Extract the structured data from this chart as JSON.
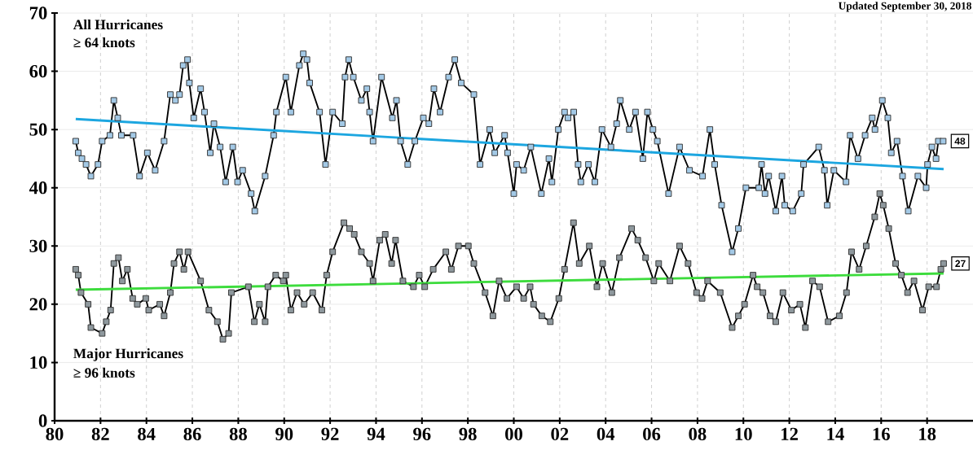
{
  "chart_data": {
    "type": "line",
    "title": "Updated September 30, 2018",
    "annotations": [
      "All Hurricanes",
      "≥ 64 knots",
      "Major Hurricanes",
      "≥ 96 knots",
      {
        "text": "48",
        "x": 2018.7,
        "y": 48
      },
      {
        "text": "27",
        "x": 2018.72,
        "y": 27
      }
    ],
    "xlim": [
      1980,
      2020
    ],
    "xticks": [
      {
        "value": 1980,
        "label": "80"
      },
      {
        "value": 1982,
        "label": "82"
      },
      {
        "value": 1984,
        "label": "84"
      },
      {
        "value": 1986,
        "label": "86"
      },
      {
        "value": 1988,
        "label": "88"
      },
      {
        "value": 1990,
        "label": "90"
      },
      {
        "value": 1992,
        "label": "92"
      },
      {
        "value": 1994,
        "label": "94"
      },
      {
        "value": 1996,
        "label": "96"
      },
      {
        "value": 1998,
        "label": "98"
      },
      {
        "value": 2000,
        "label": "00"
      },
      {
        "value": 2002,
        "label": "02"
      },
      {
        "value": 2004,
        "label": "04"
      },
      {
        "value": 2006,
        "label": "06"
      },
      {
        "value": 2008,
        "label": "08"
      },
      {
        "value": 2010,
        "label": "10"
      },
      {
        "value": 2012,
        "label": "12"
      },
      {
        "value": 2014,
        "label": "14"
      },
      {
        "value": 2016,
        "label": "16"
      },
      {
        "value": 2018,
        "label": "18"
      }
    ],
    "ylim": [
      0,
      70
    ],
    "yticks": [
      0,
      10,
      20,
      30,
      40,
      50,
      60,
      70
    ],
    "grid": true,
    "marker": "square",
    "series": [
      {
        "color": "#a3c9e6",
        "x": [
          1980.92,
          1981.03,
          1981.19,
          1981.37,
          1981.58,
          1981.89,
          1982.07,
          1982.41,
          1982.58,
          1982.75,
          1982.91,
          1983.42,
          1983.7,
          1984.04,
          1984.38,
          1984.77,
          1985.04,
          1985.26,
          1985.44,
          1985.6,
          1985.79,
          1985.87,
          1986.06,
          1986.36,
          1986.53,
          1986.78,
          1986.94,
          1987.21,
          1987.45,
          1987.76,
          1987.97,
          1988.19,
          1988.56,
          1988.72,
          1989.17,
          1989.54,
          1989.66,
          1990.07,
          1990.29,
          1990.66,
          1990.83,
          1990.99,
          1991.11,
          1991.54,
          1991.8,
          1992.11,
          1992.53,
          1992.65,
          1992.81,
          1993.01,
          1993.36,
          1993.6,
          1993.72,
          1993.87,
          1994.24,
          1994.71,
          1994.89,
          1995.07,
          1995.38,
          1995.69,
          1996.06,
          1996.3,
          1996.52,
          1996.79,
          1997.16,
          1997.43,
          1997.71,
          1998.26,
          1998.53,
          1998.95,
          1999.17,
          1999.6,
          1999.73,
          2000.0,
          2000.12,
          2000.43,
          2000.74,
          2001.2,
          2001.53,
          2001.66,
          2001.94,
          2002.21,
          2002.36,
          2002.61,
          2002.8,
          2002.92,
          2003.25,
          2003.53,
          2003.84,
          2004.23,
          2004.48,
          2004.64,
          2005.03,
          2005.3,
          2005.62,
          2005.82,
          2006.06,
          2006.25,
          2006.74,
          2007.22,
          2007.65,
          2008.22,
          2008.54,
          2008.75,
          2009.05,
          2009.51,
          2009.78,
          2010.11,
          2010.67,
          2010.79,
          2010.94,
          2011.1,
          2011.41,
          2011.68,
          2011.8,
          2012.15,
          2012.52,
          2012.62,
          2013.28,
          2013.53,
          2013.65,
          2013.94,
          2014.47,
          2014.65,
          2014.99,
          2015.3,
          2015.61,
          2015.73,
          2016.05,
          2016.29,
          2016.44,
          2016.69,
          2016.93,
          2017.18,
          2017.6,
          2017.96,
          2018.02,
          2018.21,
          2018.39,
          2018.49,
          2018.7
        ],
        "values": [
          48,
          46,
          45,
          44,
          42,
          44,
          48,
          49,
          55,
          52,
          49,
          49,
          42,
          46,
          43,
          48,
          56,
          55,
          56,
          61,
          62,
          58,
          52,
          57,
          53,
          46,
          51,
          47,
          41,
          47,
          41,
          43,
          39,
          36,
          42,
          49,
          53,
          59,
          53,
          61,
          63,
          62,
          58,
          53,
          44,
          53,
          51,
          59,
          62,
          59,
          55,
          57,
          53,
          48,
          59,
          52,
          55,
          48,
          44,
          48,
          52,
          51,
          57,
          53,
          59,
          62,
          58,
          56,
          44,
          50,
          46,
          49,
          46,
          39,
          44,
          43,
          47,
          39,
          45,
          41,
          50,
          53,
          52,
          53,
          44,
          41,
          44,
          41,
          50,
          47,
          51,
          55,
          50,
          53,
          45,
          53,
          50,
          48,
          39,
          47,
          43,
          42,
          50,
          44,
          37,
          29,
          33,
          40,
          40,
          44,
          39,
          42,
          36,
          42,
          37,
          36,
          39,
          44,
          47,
          43,
          37,
          43,
          41,
          49,
          45,
          49,
          52,
          50,
          55,
          52,
          46,
          48,
          42,
          36,
          42,
          40,
          44,
          47,
          45,
          48,
          48
        ]
      },
      {
        "color": "#8e989d",
        "x": [
          1980.92,
          1981.03,
          1981.15,
          1981.46,
          1981.58,
          1982.07,
          1982.25,
          1982.44,
          1982.58,
          1982.78,
          1982.95,
          1983.17,
          1983.4,
          1983.6,
          1983.97,
          1984.1,
          1984.58,
          1984.77,
          1985.04,
          1985.2,
          1985.44,
          1985.63,
          1985.81,
          1986.36,
          1986.72,
          1987.09,
          1987.33,
          1987.58,
          1987.7,
          1988.44,
          1988.7,
          1988.92,
          1989.17,
          1989.29,
          1989.63,
          1989.96,
          1990.07,
          1990.29,
          1990.56,
          1990.87,
          1991.24,
          1991.64,
          1991.85,
          1992.11,
          1992.6,
          1992.85,
          1993.05,
          1993.36,
          1993.72,
          1993.87,
          1994.16,
          1994.4,
          1994.68,
          1994.85,
          1995.17,
          1995.63,
          1995.88,
          1996.12,
          1996.49,
          1997.04,
          1997.28,
          1997.59,
          1998.02,
          1998.26,
          1998.75,
          1999.09,
          1999.36,
          1999.7,
          2000.12,
          2000.43,
          2000.71,
          2000.86,
          2001.22,
          2001.59,
          2001.96,
          2002.21,
          2002.6,
          2002.85,
          2003.29,
          2003.62,
          2003.87,
          2004.27,
          2004.6,
          2005.13,
          2005.4,
          2005.74,
          2006.1,
          2006.31,
          2006.8,
          2007.22,
          2007.59,
          2007.96,
          2008.2,
          2008.44,
          2008.99,
          2009.51,
          2009.78,
          2010.05,
          2010.42,
          2010.6,
          2010.85,
          2011.16,
          2011.41,
          2011.72,
          2012.09,
          2012.46,
          2012.7,
          2013.01,
          2013.32,
          2013.69,
          2014.18,
          2014.49,
          2014.71,
          2015.04,
          2015.35,
          2015.72,
          2015.94,
          2016.09,
          2016.33,
          2016.63,
          2016.88,
          2017.15,
          2017.43,
          2017.8,
          2018.07,
          2018.41,
          2018.6,
          2018.72
        ],
        "values": [
          26,
          25,
          22,
          20,
          16,
          15,
          17,
          19,
          27,
          28,
          24,
          26,
          21,
          20,
          21,
          19,
          20,
          18,
          22,
          27,
          29,
          26,
          29,
          24,
          19,
          17,
          14,
          15,
          22,
          23,
          17,
          20,
          17,
          23,
          25,
          24,
          25,
          19,
          22,
          20,
          22,
          19,
          25,
          29,
          34,
          33,
          32,
          29,
          27,
          24,
          31,
          32,
          27,
          31,
          24,
          23,
          25,
          23,
          26,
          29,
          26,
          30,
          30,
          27,
          22,
          18,
          24,
          21,
          23,
          21,
          23,
          20,
          18,
          17,
          21,
          26,
          34,
          27,
          30,
          23,
          27,
          22,
          28,
          33,
          31,
          28,
          24,
          27,
          24,
          30,
          27,
          22,
          21,
          24,
          22,
          16,
          18,
          20,
          25,
          23,
          22,
          18,
          17,
          22,
          19,
          20,
          16,
          24,
          23,
          17,
          18,
          22,
          29,
          26,
          30,
          35,
          39,
          37,
          33,
          27,
          25,
          22,
          24,
          19,
          23,
          23,
          26,
          27
        ]
      },
      {
        "color": "#1ca6e0",
        "marker": "none",
        "x": [
          1980.92,
          2018.72
        ],
        "values": [
          51.8,
          43.2
        ]
      },
      {
        "color": "#3ddc3d",
        "marker": "none",
        "x": [
          1980.92,
          2018.72
        ],
        "values": [
          22.5,
          25.3
        ]
      }
    ]
  }
}
